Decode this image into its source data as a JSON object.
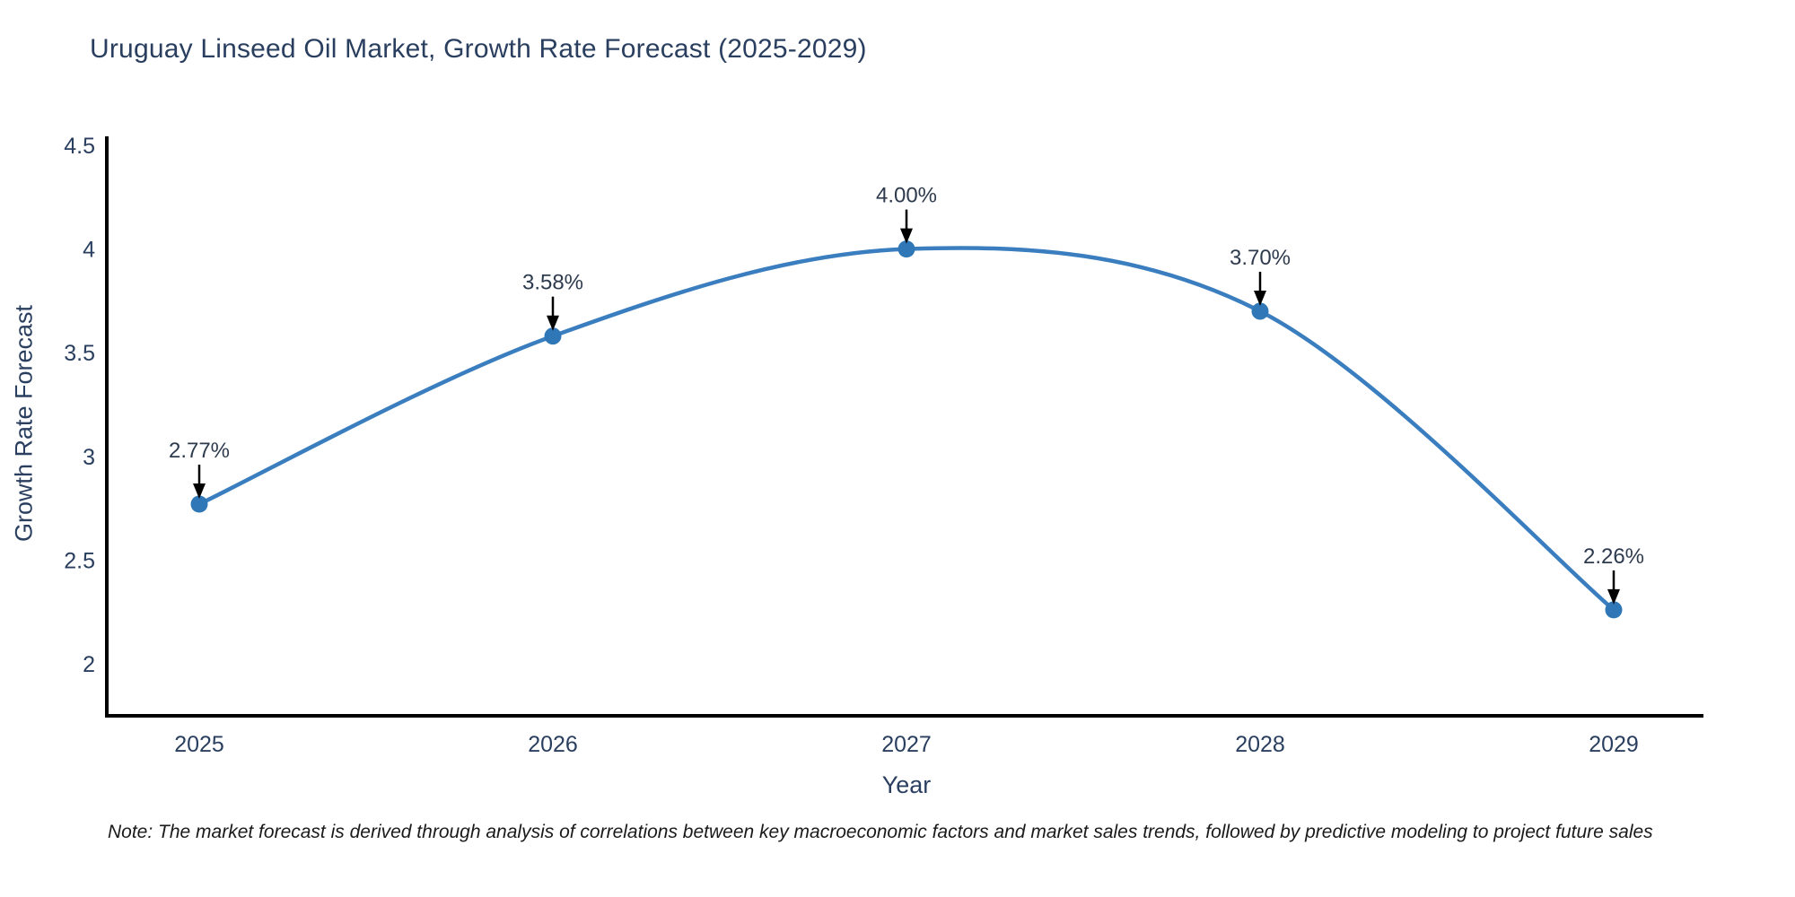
{
  "chart_data": {
    "type": "line",
    "line_shape": "spline",
    "title": "Uruguay Linseed Oil Market, Growth Rate Forecast (2025-2029)",
    "xlabel": "Year",
    "ylabel": "Growth Rate Forecast",
    "x": [
      2025,
      2026,
      2027,
      2028,
      2029
    ],
    "values": [
      2.77,
      3.58,
      4.0,
      3.7,
      2.26
    ],
    "point_labels": [
      "2.77%",
      "3.58%",
      "4.00%",
      "3.70%",
      "2.26%"
    ],
    "xticks": [
      "2025",
      "2026",
      "2027",
      "2028",
      "2029"
    ],
    "yticks": [
      {
        "value": 4.5,
        "label": "4.5"
      },
      {
        "value": 4.0,
        "label": "4"
      },
      {
        "value": 3.5,
        "label": "3.5"
      },
      {
        "value": 3.0,
        "label": "3"
      },
      {
        "value": 2.5,
        "label": "2.5"
      },
      {
        "value": 2.0,
        "label": "2"
      }
    ],
    "ylim": [
      1.75,
      4.53
    ],
    "grid": false,
    "legend": "none"
  },
  "note": "Note: The market forecast is derived through analysis of correlations between key macroeconomic factors and market sales trends, followed by predictive modeling to project future sales",
  "colors": {
    "line": "#3a7ebf",
    "marker": "#2f77b6",
    "axis": "#000000",
    "arrow": "#000000",
    "title": "#2a3f5f",
    "tick": "#2a3f5f",
    "annotation": "#2e3b4e",
    "note": "#1a1a1a",
    "background": "#ffffff"
  }
}
